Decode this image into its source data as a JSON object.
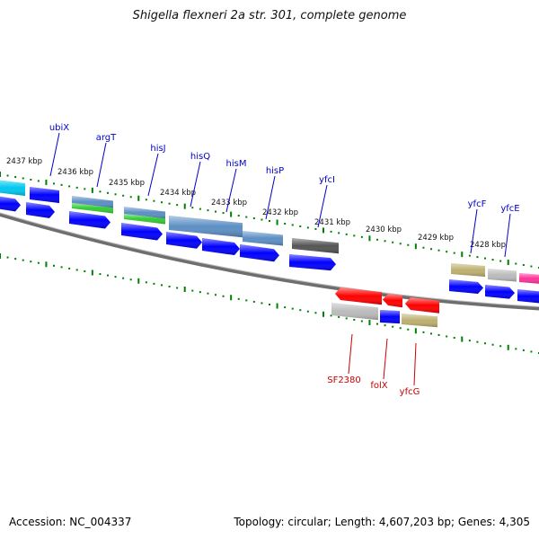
{
  "title": "Shigella flexneri 2a str. 301, complete genome",
  "footer": {
    "accession": "Accession: NC_004337",
    "summary": "Topology: circular; Length: 4,607,203 bp; Genes: 4,305"
  },
  "colors": {
    "backbone": "#808080",
    "tick": "#008000",
    "forward_label": "#0000cc",
    "reverse_label": "#cc0000",
    "cds_forward": "#0000ff",
    "cds_reverse": "#ff0000",
    "rna": "#33cc33",
    "feature_blue": "#5c8fc4",
    "feature_cyan": "#00c8f0",
    "feature_gray": "#bbbbbb",
    "feature_dark": "#555555",
    "feature_olive": "#bdb070",
    "feature_pink": "#ff3399"
  },
  "scale_labels": [
    "2437 kbp",
    "2436 kbp",
    "2435 kbp",
    "2434 kbp",
    "2433 kbp",
    "2432 kbp",
    "2431 kbp",
    "2430 kbp",
    "2429 kbp",
    "2428 kbp"
  ],
  "forward_genes": [
    "ubiX",
    "argT",
    "hisJ",
    "hisQ",
    "hisM",
    "hisP",
    "yfcI",
    "yfcF",
    "yfcE"
  ],
  "reverse_genes": [
    "SF2380",
    "folX",
    "yfcG"
  ]
}
